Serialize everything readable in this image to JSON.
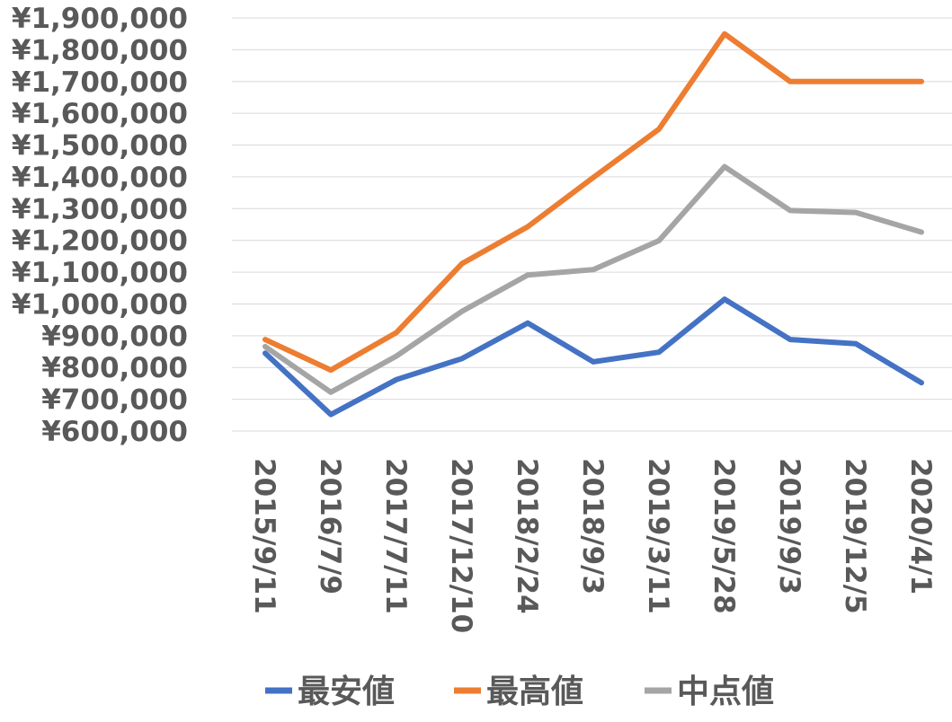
{
  "chart_data": {
    "type": "line",
    "title": "",
    "xlabel": "",
    "ylabel": "",
    "categories": [
      "2015/9/11",
      "2016/7/9",
      "2017/7/11",
      "2017/12/10",
      "2018/2/24",
      "2018/9/3",
      "2019/3/11",
      "2019/5/28",
      "2019/9/3",
      "2019/12/5",
      "2020/4/1"
    ],
    "ylim": [
      600000,
      1900000
    ],
    "ytick_step": 100000,
    "ytick_labels": [
      "¥600,000",
      "¥700,000",
      "¥800,000",
      "¥900,000",
      "¥1,000,000",
      "¥1,100,000",
      "¥1,200,000",
      "¥1,300,000",
      "¥1,400,000",
      "¥1,500,000",
      "¥1,600,000",
      "¥1,700,000",
      "¥1,800,000",
      "¥1,900,000"
    ],
    "grid": true,
    "legend_position": "bottom",
    "series": [
      {
        "name": "最安値",
        "color": "#4472C4",
        "values": [
          845000,
          652000,
          762000,
          828000,
          940000,
          818000,
          848000,
          1015000,
          888000,
          875000,
          752000
        ]
      },
      {
        "name": "最高値",
        "color": "#ED7D31",
        "values": [
          888000,
          792000,
          910000,
          1127000,
          1243000,
          1398000,
          1550000,
          1850000,
          1700000,
          1700000,
          1700000
        ]
      },
      {
        "name": "中点値",
        "color": "#A5A5A5",
        "values": [
          866000,
          722000,
          836000,
          977000,
          1091000,
          1108000,
          1199000,
          1432000,
          1294000,
          1288000,
          1226000
        ]
      }
    ]
  }
}
